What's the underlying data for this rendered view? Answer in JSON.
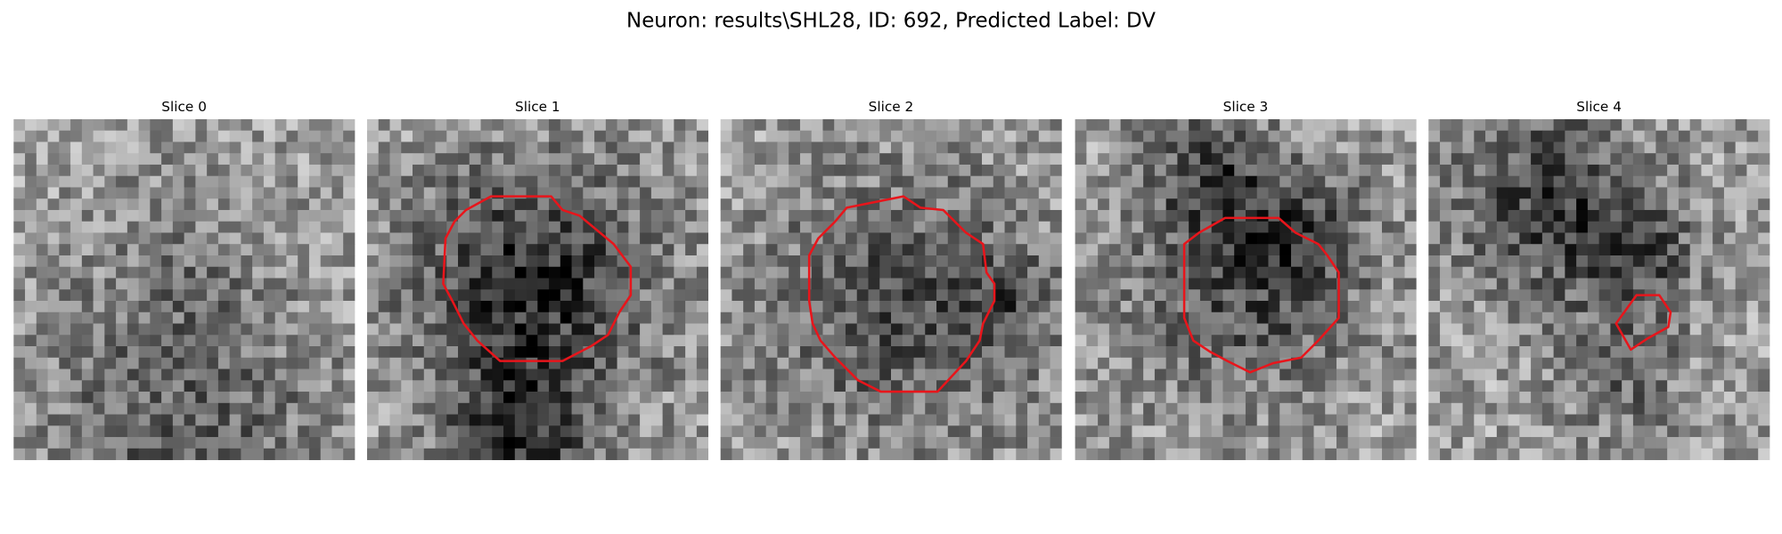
{
  "title": "Neuron: results\\SHL28, ID: 692, Predicted Label: DV",
  "panels": [
    {
      "title": "Slice 0"
    },
    {
      "title": "Slice 1"
    },
    {
      "title": "Slice 2"
    },
    {
      "title": "Slice 3"
    },
    {
      "title": "Slice 4"
    }
  ]
}
